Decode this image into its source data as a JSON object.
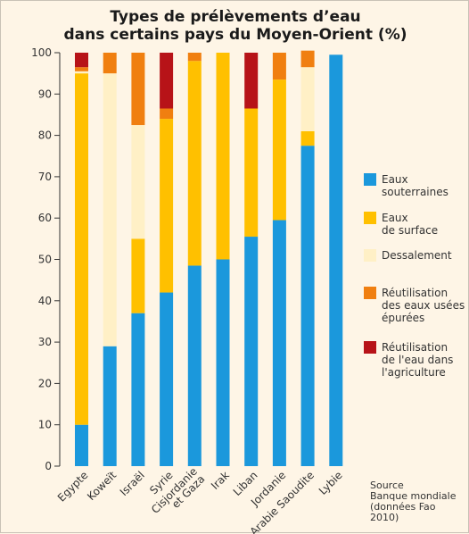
{
  "chart_data": {
    "type": "bar",
    "stacked": true,
    "title_lines": [
      "Types de prélèvements d’eau",
      "dans certains pays du Moyen-Orient (%)"
    ],
    "categories": [
      "Egypte",
      "Koweït",
      "Israël",
      "Syrie",
      "Cisjordanie et Gaza",
      "Irak",
      "Liban",
      "Jordanie",
      "Arabie Saoudite",
      "Lybie"
    ],
    "category_label_lines": [
      [
        "Egypte"
      ],
      [
        "Koweït"
      ],
      [
        "Israël"
      ],
      [
        "Syrie"
      ],
      [
        "Cisjordanie",
        "et Gaza"
      ],
      [
        "Irak"
      ],
      [
        "Liban"
      ],
      [
        "Jordanie"
      ],
      [
        "Arabie Saoudite"
      ],
      [
        "Lybie"
      ]
    ],
    "series": [
      {
        "name_lines": [
          "Eaux",
          "souterraines"
        ],
        "color": "#1b98dc",
        "values": [
          10,
          29,
          37,
          42,
          48.5,
          50,
          55.5,
          59.5,
          77.5,
          99.5
        ]
      },
      {
        "name_lines": [
          "Eaux",
          "de surface"
        ],
        "color": "#ffc000",
        "values": [
          85,
          0,
          18,
          42,
          49.5,
          50,
          31,
          34,
          3.5,
          0
        ]
      },
      {
        "name_lines": [
          "Dessalement"
        ],
        "color": "#fff0c6",
        "values": [
          0.5,
          66,
          27.5,
          0,
          0,
          0,
          0,
          0,
          15.5,
          0
        ]
      },
      {
        "name_lines": [
          "Réutilisation",
          "des eaux usées",
          "épurées"
        ],
        "color": "#f07f10",
        "values": [
          1,
          5,
          17.5,
          2.5,
          2,
          0,
          0,
          6.5,
          4,
          0
        ]
      },
      {
        "name_lines": [
          "Réutilisation",
          "de l'eau dans",
          "l'agriculture"
        ],
        "color": "#b71318",
        "values": [
          3.5,
          0,
          0,
          13.5,
          0,
          0,
          13.5,
          0,
          0,
          0
        ]
      }
    ],
    "ylim": [
      0,
      100
    ],
    "yticks": [
      0,
      10,
      20,
      30,
      40,
      50,
      60,
      70,
      80,
      90,
      100
    ],
    "grid": false,
    "legend_position": "right",
    "axis_color": "#333333"
  },
  "source_lines": [
    "Source",
    "Banque mondiale",
    "(données Fao",
    "2010)"
  ]
}
